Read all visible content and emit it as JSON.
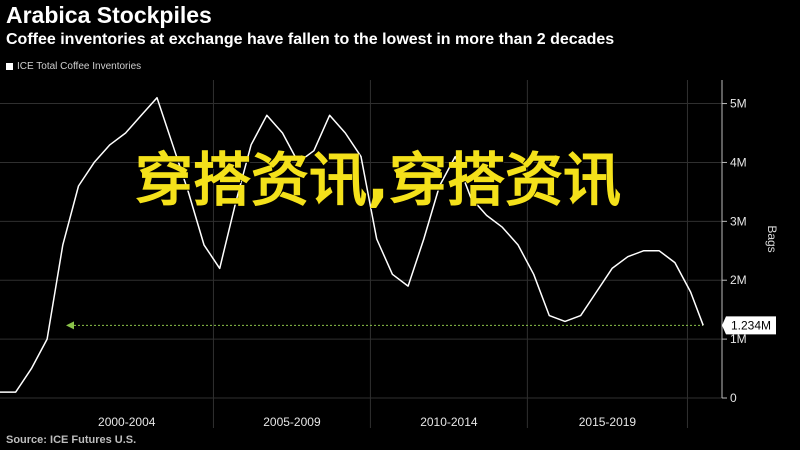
{
  "title": "Arabica Stockpiles",
  "subtitle": "Coffee inventories at exchange have fallen to the lowest in more than 2 decades",
  "source": "Source: ICE Futures U.S.",
  "overlay_text": "穿搭资讯,穿搭资讯",
  "colors": {
    "background": "#000000",
    "line": "#ffffff",
    "reference": "#8bc34a",
    "overlay": "#f4e11a",
    "grid": "#2f2f2f"
  },
  "chart_data": {
    "type": "line",
    "series": [
      {
        "name": "ICE Total Coffee Inventories",
        "x": [
          1998.0,
          1998.5,
          1999.0,
          1999.5,
          2000.0,
          2000.5,
          2001.0,
          2001.5,
          2002.0,
          2002.5,
          2003.0,
          2003.5,
          2004.0,
          2004.5,
          2005.0,
          2005.5,
          2006.0,
          2006.5,
          2007.0,
          2007.5,
          2008.0,
          2008.5,
          2009.0,
          2009.5,
          2010.0,
          2010.5,
          2011.0,
          2011.5,
          2012.0,
          2012.5,
          2013.0,
          2013.5,
          2014.0,
          2014.5,
          2015.0,
          2015.5,
          2016.0,
          2016.5,
          2017.0,
          2017.5,
          2018.0,
          2018.5,
          2019.0,
          2019.5,
          2020.0,
          2020.4
        ],
        "values": [
          0.1,
          0.1,
          0.5,
          1.0,
          2.6,
          3.6,
          4.0,
          4.3,
          4.5,
          4.8,
          5.1,
          4.3,
          3.5,
          2.6,
          2.2,
          3.3,
          4.3,
          4.8,
          4.5,
          4.0,
          4.2,
          4.8,
          4.5,
          4.1,
          2.7,
          2.1,
          1.9,
          2.7,
          3.6,
          4.1,
          3.4,
          3.1,
          2.9,
          2.6,
          2.1,
          1.4,
          1.3,
          1.4,
          1.8,
          2.2,
          2.4,
          2.5,
          2.5,
          2.3,
          1.8,
          1.234
        ]
      }
    ],
    "last_value": 1.234,
    "last_value_label": "1.234M",
    "reference_line": {
      "value": 1.234,
      "style": "dotted",
      "arrow": "left"
    },
    "x_range": [
      1998.0,
      2021.0
    ],
    "x_periods": [
      {
        "label": "2000-2004",
        "start": 1998.0,
        "end": 2004.8
      },
      {
        "label": "2005-2009",
        "start": 2004.8,
        "end": 2009.8
      },
      {
        "label": "2010-2014",
        "start": 2009.8,
        "end": 2014.8
      },
      {
        "label": "2015-2019",
        "start": 2014.8,
        "end": 2019.9
      }
    ],
    "ylabel": "Bags",
    "ylim": [
      0,
      5.4
    ],
    "y_ticks": [
      0,
      1,
      2,
      3,
      4,
      5
    ],
    "y_tick_labels": [
      "0",
      "1M",
      "2M",
      "3M",
      "4M",
      "5M"
    ],
    "grid": true,
    "legend_position": "top-left",
    "y_axis_position": "right"
  }
}
